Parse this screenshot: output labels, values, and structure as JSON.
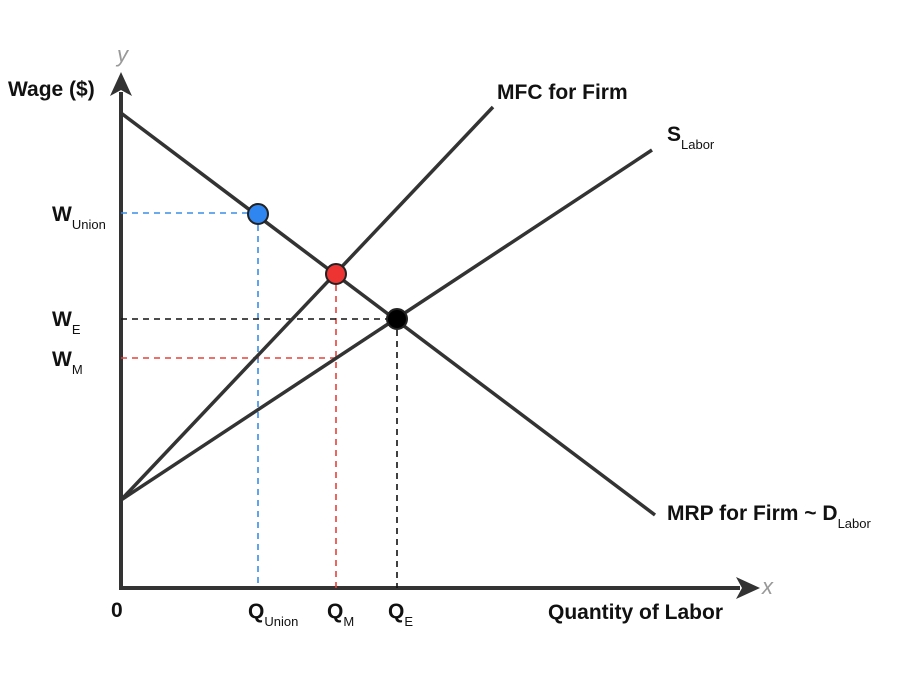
{
  "axes": {
    "y_symbol": "y",
    "x_symbol": "x",
    "y_label": "Wage ($)",
    "x_label": "Quantity of Labor",
    "origin": "0"
  },
  "curves": [
    {
      "label": "MFC for Firm"
    },
    {
      "label": "S",
      "sub": "Labor"
    },
    {
      "label": "MRP for Firm ~ D",
      "sub": "Labor"
    }
  ],
  "wage_labels": [
    {
      "main": "W",
      "sub": "Union"
    },
    {
      "main": "W",
      "sub": "E"
    },
    {
      "main": "W",
      "sub": "M"
    }
  ],
  "quantity_labels": [
    {
      "main": "Q",
      "sub": "Union"
    },
    {
      "main": "Q",
      "sub": "M"
    },
    {
      "main": "Q",
      "sub": "E"
    }
  ]
}
